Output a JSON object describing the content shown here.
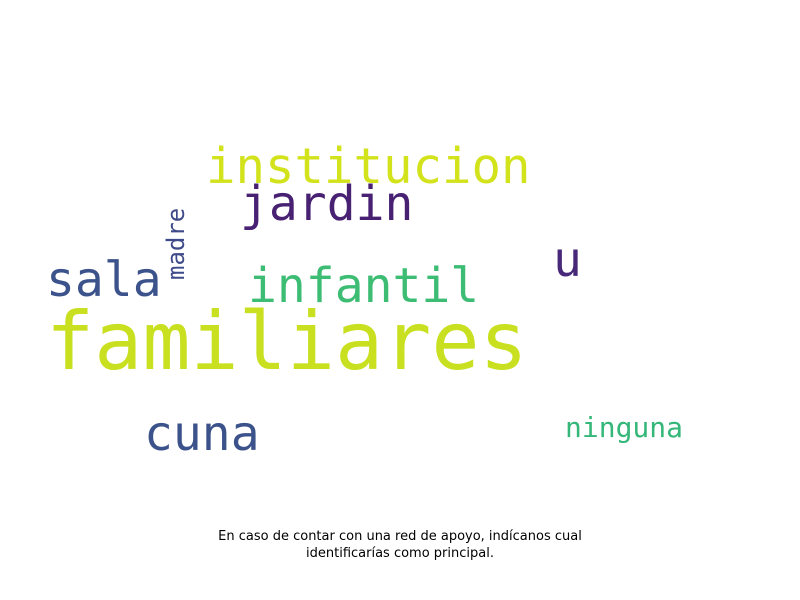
{
  "words": [
    {
      "id": "familiares",
      "text": "familiares",
      "color": "#c8e020"
    },
    {
      "id": "institucion",
      "text": "institucion",
      "color": "#d2e21b"
    },
    {
      "id": "jardin",
      "text": "jardin",
      "color": "#482173"
    },
    {
      "id": "sala",
      "text": "sala",
      "color": "#3b528b"
    },
    {
      "id": "infantil",
      "text": "infantil",
      "color": "#3dbc74"
    },
    {
      "id": "cuna",
      "text": "cuna",
      "color": "#3b528b"
    },
    {
      "id": "u",
      "text": "u",
      "color": "#482878"
    },
    {
      "id": "ninguna",
      "text": "ninguna",
      "color": "#35b779"
    },
    {
      "id": "madre",
      "text": "madre",
      "color": "#3e4a89"
    }
  ],
  "caption": {
    "line1": "En caso de contar con una red de apoyo, indícanos cual",
    "line2": "identificarías como principal."
  }
}
